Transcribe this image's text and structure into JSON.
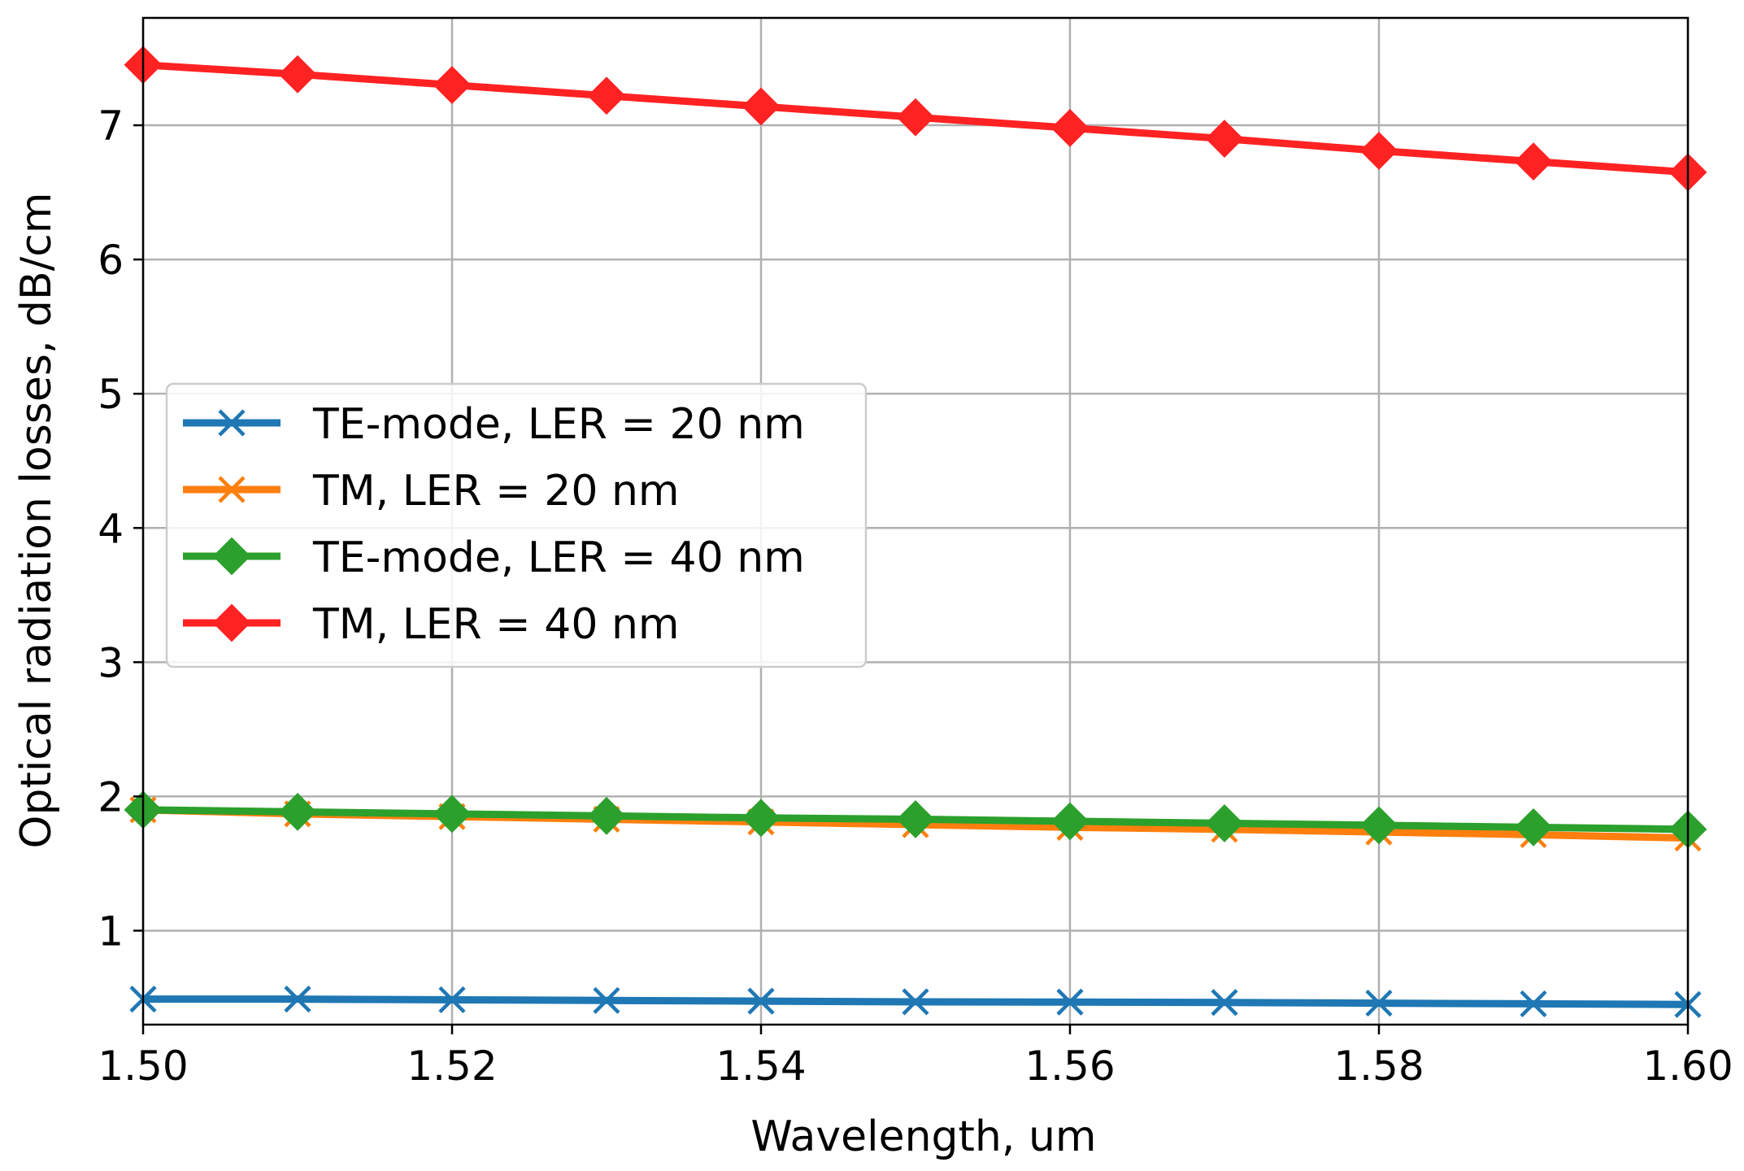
{
  "chart_data": {
    "type": "line",
    "title": "",
    "xlabel": "Wavelength, um",
    "ylabel": "Optical radiation losses, dB/cm",
    "xlim": [
      1.5,
      1.6
    ],
    "ylim": [
      0.3,
      7.8
    ],
    "grid": true,
    "legend_position": "center-left",
    "x": [
      1.5,
      1.51,
      1.52,
      1.53,
      1.54,
      1.55,
      1.56,
      1.57,
      1.58,
      1.59,
      1.6
    ],
    "x_ticks": [
      1.5,
      1.52,
      1.54,
      1.56,
      1.58,
      1.6
    ],
    "x_tick_labels": [
      "1.50",
      "1.52",
      "1.54",
      "1.56",
      "1.58",
      "1.60"
    ],
    "y_ticks": [
      1,
      2,
      3,
      4,
      5,
      6,
      7
    ],
    "y_tick_labels": [
      "1",
      "2",
      "3",
      "4",
      "5",
      "6",
      "7"
    ],
    "series": [
      {
        "name": "TE-mode, LER = 20 nm",
        "color": "#1f77b4",
        "marker": "x",
        "values": [
          0.49,
          0.49,
          0.485,
          0.48,
          0.475,
          0.47,
          0.468,
          0.465,
          0.46,
          0.455,
          0.45
        ]
      },
      {
        "name": "TM, LER = 20 nm",
        "color": "#ff7f0e",
        "marker": "x",
        "values": [
          1.9,
          1.87,
          1.85,
          1.83,
          1.81,
          1.79,
          1.77,
          1.755,
          1.735,
          1.715,
          1.69
        ]
      },
      {
        "name": "TE-mode, LER = 40 nm",
        "color": "#2ca02c",
        "marker": "diamond",
        "values": [
          1.9,
          1.885,
          1.87,
          1.855,
          1.84,
          1.83,
          1.815,
          1.8,
          1.785,
          1.77,
          1.755
        ]
      },
      {
        "name": "TM, LER = 40 nm",
        "color": "#ff2222",
        "marker": "diamond",
        "values": [
          7.45,
          7.38,
          7.3,
          7.22,
          7.14,
          7.06,
          6.98,
          6.9,
          6.81,
          6.73,
          6.65
        ]
      }
    ]
  }
}
